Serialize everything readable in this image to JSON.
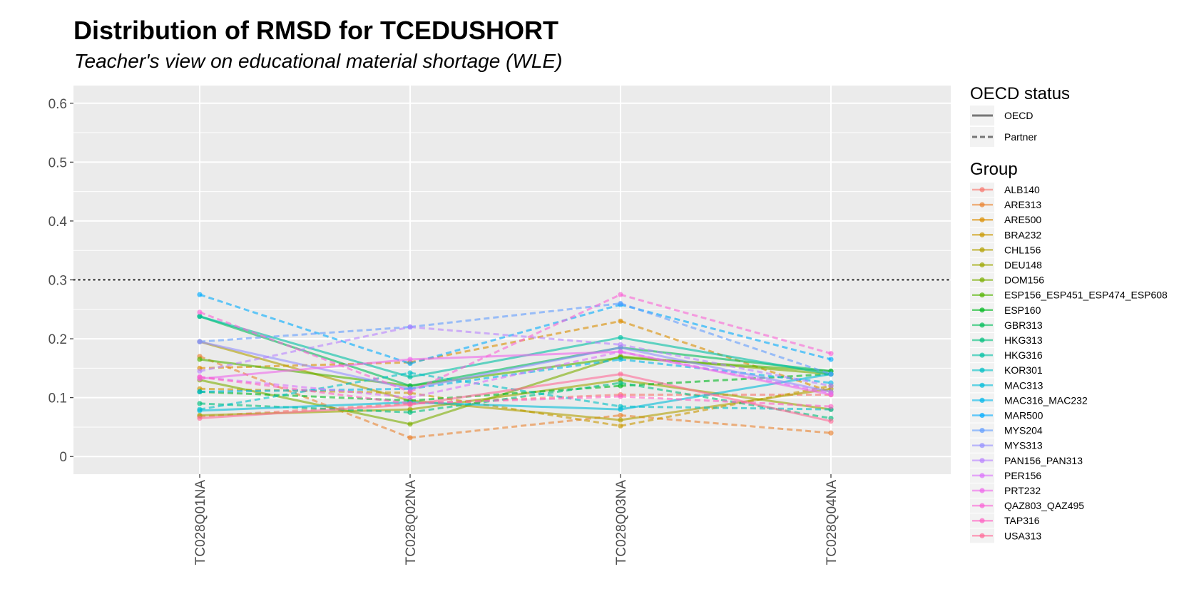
{
  "chart_data": {
    "type": "line",
    "title": "Distribution of RMSD for TCEDUSHORT",
    "subtitle": "Teacher's view on educational material shortage (WLE)",
    "xlabel": "",
    "ylabel": "",
    "categories": [
      "TC028Q01NA",
      "TC028Q02NA",
      "TC028Q03NA",
      "TC028Q04NA"
    ],
    "ylim": [
      -0.03,
      0.63
    ],
    "yticks": [
      0,
      0.1,
      0.2,
      0.3,
      0.4,
      0.5,
      0.6
    ],
    "ytick_labels": [
      "0",
      "0.1",
      "0.2",
      "0.3",
      "0.4",
      "0.5",
      "0.6"
    ],
    "reference_line": 0.3,
    "grid": true,
    "legend_position": "right",
    "legend_linetype": {
      "title": "OECD status",
      "entries": [
        {
          "label": "OECD",
          "dash": "solid"
        },
        {
          "label": "Partner",
          "dash": "dashed"
        }
      ]
    },
    "legend_group_title": "Group",
    "series": [
      {
        "name": "ALB140",
        "status": "Partner",
        "color": "#F8766D",
        "values": [
          0.068,
          0.09,
          0.105,
          0.105
        ]
      },
      {
        "name": "ARE313",
        "status": "Partner",
        "color": "#EA8331",
        "values": [
          0.17,
          0.032,
          0.07,
          0.04
        ]
      },
      {
        "name": "ARE500",
        "status": "Partner",
        "color": "#DB8E00",
        "values": [
          0.15,
          0.16,
          0.23,
          0.11
        ]
      },
      {
        "name": "BRA232",
        "status": "Partner",
        "color": "#C99800",
        "values": [
          0.115,
          0.108,
          0.052,
          0.12
        ]
      },
      {
        "name": "CHL156",
        "status": "OECD",
        "color": "#B3A000",
        "values": [
          0.195,
          0.095,
          0.062,
          0.115
        ]
      },
      {
        "name": "DEU148",
        "status": "OECD",
        "color": "#9CA700",
        "values": [
          0.07,
          0.08,
          0.13,
          0.08
        ]
      },
      {
        "name": "DOM156",
        "status": "OECD",
        "color": "#7CAE00",
        "values": [
          0.13,
          0.055,
          0.17,
          0.14
        ]
      },
      {
        "name": "ESP156_ESP451_ESP474_ESP608",
        "status": "OECD",
        "color": "#53B400",
        "values": [
          0.165,
          0.12,
          0.168,
          0.145
        ]
      },
      {
        "name": "ESP160",
        "status": "Partner",
        "color": "#00B81F",
        "values": [
          0.11,
          0.095,
          0.12,
          0.14
        ]
      },
      {
        "name": "GBR313",
        "status": "OECD",
        "color": "#00BC59",
        "values": [
          0.238,
          0.12,
          0.185,
          0.145
        ]
      },
      {
        "name": "HKG313",
        "status": "Partner",
        "color": "#00BF7D",
        "values": [
          0.09,
          0.075,
          0.125,
          0.065
        ]
      },
      {
        "name": "HKG316",
        "status": "OECD",
        "color": "#00C0A3",
        "values": [
          0.238,
          0.135,
          0.202,
          0.14
        ]
      },
      {
        "name": "KOR301",
        "status": "Partner",
        "color": "#00BFC4",
        "values": [
          0.08,
          0.142,
          0.085,
          0.08
        ]
      },
      {
        "name": "MAC313",
        "status": "OECD",
        "color": "#00BCD8",
        "values": [
          0.078,
          0.092,
          0.08,
          0.14
        ]
      },
      {
        "name": "MAC316_MAC232",
        "status": "Partner",
        "color": "#00B7E9",
        "values": [
          0.11,
          0.115,
          0.165,
          0.125
        ]
      },
      {
        "name": "MAR500",
        "status": "Partner",
        "color": "#00ABFD",
        "values": [
          0.275,
          0.158,
          0.258,
          0.165
        ]
      },
      {
        "name": "MYS204",
        "status": "Partner",
        "color": "#619CFF",
        "values": [
          0.195,
          0.22,
          0.26,
          0.14
        ]
      },
      {
        "name": "MYS313",
        "status": "OECD",
        "color": "#9590FF",
        "values": [
          0.195,
          0.115,
          0.185,
          0.11
        ]
      },
      {
        "name": "PAN156_PAN313",
        "status": "Partner",
        "color": "#B983FF",
        "values": [
          0.145,
          0.22,
          0.19,
          0.12
        ]
      },
      {
        "name": "PER156",
        "status": "Partner",
        "color": "#DB72FB",
        "values": [
          0.135,
          0.1,
          0.178,
          0.108
        ]
      },
      {
        "name": "PRT232",
        "status": "OECD",
        "color": "#EF67EB",
        "values": [
          0.132,
          0.165,
          0.178,
          0.105
        ]
      },
      {
        "name": "QAZ803_QAZ495",
        "status": "Partner",
        "color": "#FA62D5",
        "values": [
          0.245,
          0.11,
          0.275,
          0.175
        ]
      },
      {
        "name": "TAP316",
        "status": "Partner",
        "color": "#FF61C3",
        "values": [
          0.135,
          0.09,
          0.102,
          0.085
        ]
      },
      {
        "name": "USA313",
        "status": "OECD",
        "color": "#FF6A98",
        "values": [
          0.065,
          0.088,
          0.14,
          0.06
        ]
      }
    ]
  }
}
